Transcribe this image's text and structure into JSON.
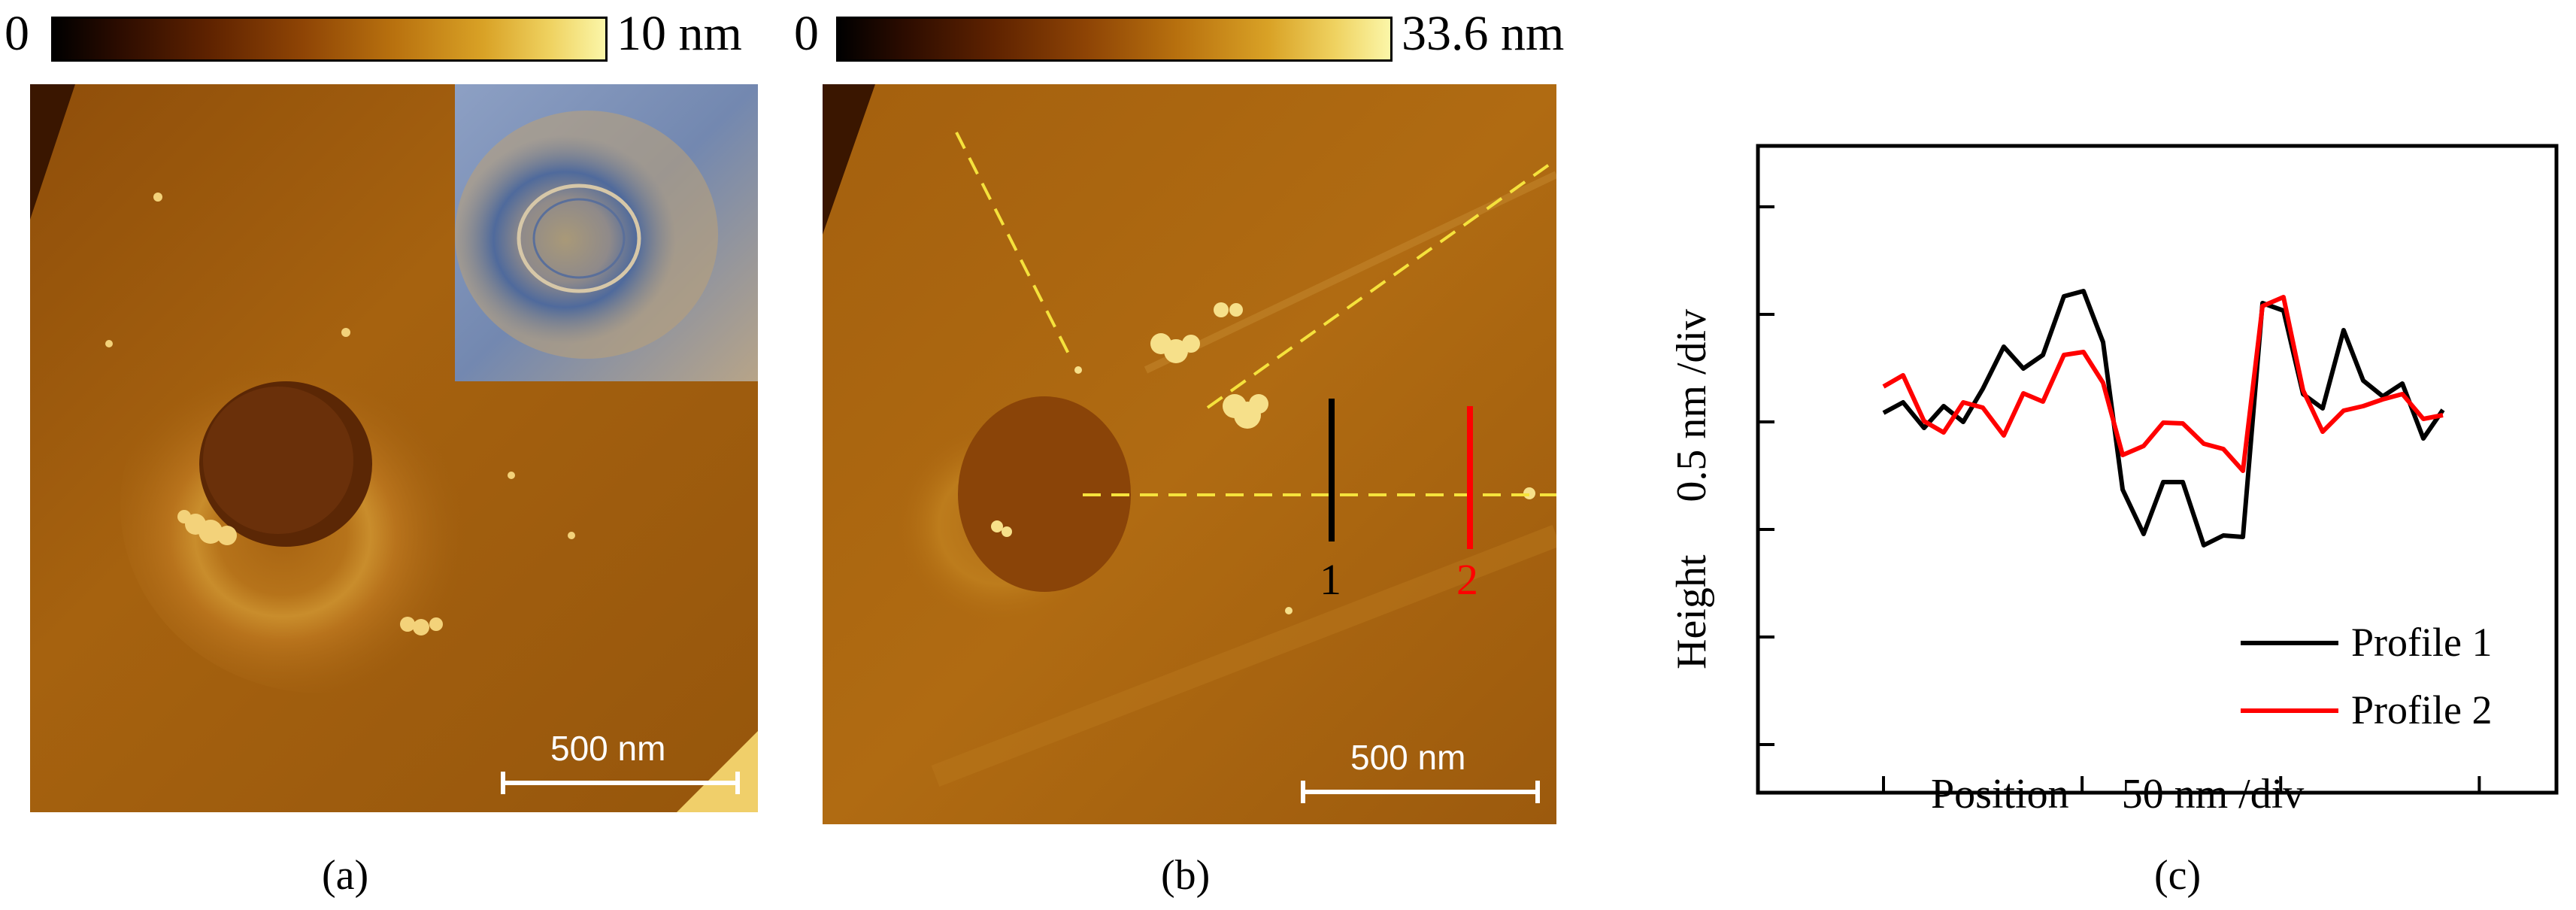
{
  "panels": {
    "a": {
      "colorbar": {
        "min_label": "0",
        "max_label": "10 nm"
      },
      "scale_bar": "500 nm",
      "caption": "(a)"
    },
    "b": {
      "colorbar": {
        "min_label": "0",
        "max_label": "33.6 nm"
      },
      "scale_bar": "500 nm",
      "profile_markers": [
        {
          "label": "1",
          "color": "#000000"
        },
        {
          "label": "2",
          "color": "#ff0000"
        }
      ],
      "caption": "(b)"
    },
    "c": {
      "caption": "(c)"
    }
  },
  "chart_data": {
    "type": "line",
    "xlabel": "Position     50 nm /div",
    "ylabel": "Height     0.5 nm /div",
    "legend_position": "bottom-right",
    "grid": false,
    "series": [
      {
        "name": "Profile 1",
        "color": "#000000",
        "x": [
          0,
          0.14,
          0.29,
          0.43,
          0.57,
          0.71,
          0.86,
          1.0,
          1.14,
          1.29,
          1.43,
          1.57,
          1.71,
          1.86,
          2.0,
          2.14,
          2.29,
          2.43,
          2.57,
          2.71,
          2.86,
          3.0,
          3.14,
          3.29,
          3.43,
          3.57,
          3.71,
          3.86,
          4.0
        ],
        "y": [
          -0.04,
          0.1,
          -0.24,
          0.05,
          -0.16,
          0.28,
          0.84,
          0.55,
          0.73,
          1.51,
          1.58,
          0.9,
          -1.06,
          -1.65,
          -0.96,
          -0.96,
          -1.8,
          -1.67,
          -1.69,
          1.42,
          1.32,
          0.21,
          0.02,
          1.06,
          0.39,
          0.18,
          0.35,
          -0.38,
          0
        ]
      },
      {
        "name": "Profile 2",
        "color": "#ff0000",
        "x": [
          0,
          0.14,
          0.29,
          0.43,
          0.57,
          0.71,
          0.86,
          1.0,
          1.14,
          1.29,
          1.43,
          1.57,
          1.71,
          1.86,
          2.0,
          2.14,
          2.29,
          2.43,
          2.57,
          2.71,
          2.86,
          3.0,
          3.14,
          3.29,
          3.43,
          3.57,
          3.71,
          3.86,
          4.0
        ],
        "y": [
          0.31,
          0.46,
          -0.15,
          -0.3,
          0.1,
          0.03,
          -0.34,
          0.22,
          0.11,
          0.73,
          0.77,
          0.36,
          -0.6,
          -0.48,
          -0.17,
          -0.18,
          -0.45,
          -0.52,
          -0.81,
          1.38,
          1.5,
          0.26,
          -0.29,
          -0.01,
          0.05,
          0.14,
          0.21,
          -0.12,
          -0.07
        ]
      }
    ]
  }
}
